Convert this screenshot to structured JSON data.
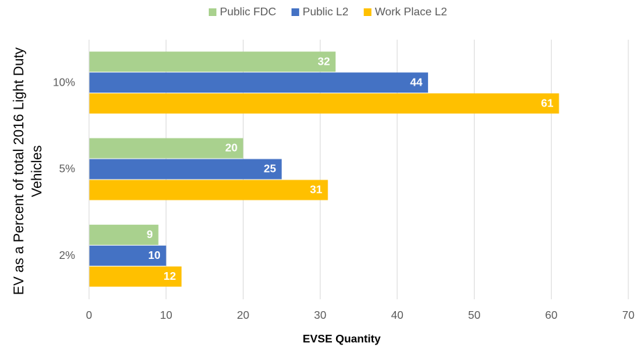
{
  "chart_data": {
    "type": "hbar",
    "categories": [
      "10%",
      "5%",
      "2%"
    ],
    "series": [
      {
        "name": "Public FDC",
        "color": "#a9d18e",
        "values": [
          32,
          20,
          9
        ]
      },
      {
        "name": "Public L2",
        "color": "#4472c4",
        "values": [
          44,
          25,
          10
        ]
      },
      {
        "name": "Work Place L2",
        "color": "#ffc000",
        "values": [
          61,
          31,
          12
        ]
      }
    ],
    "xlabel": "EVSE Quantity",
    "ylabel": [
      "EV as a Percent of total 2016 Light Duty",
      "Vehicles"
    ],
    "xlim": [
      0,
      70
    ],
    "xticks": [
      0,
      10,
      20,
      30,
      40,
      50,
      60,
      70
    ],
    "grid": true,
    "legend": "top"
  }
}
